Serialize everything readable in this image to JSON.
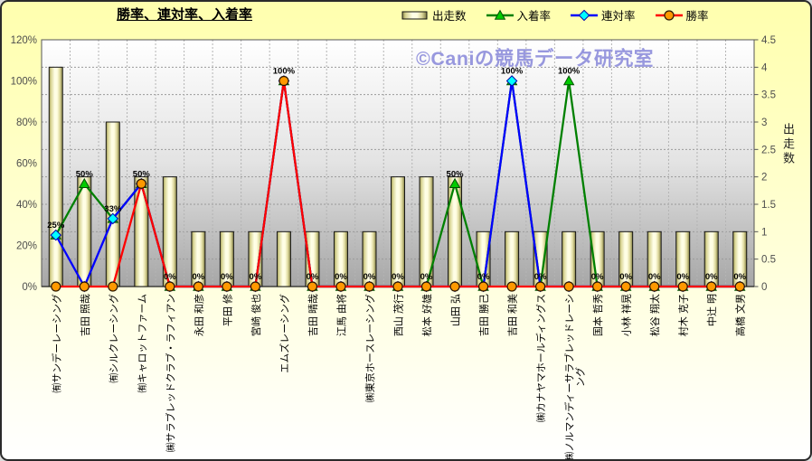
{
  "title": "勝率、連対率、入着率",
  "watermark": "©Caniの競馬データ研究室",
  "colors": {
    "place_line": "#008000",
    "place_marker": "#00CC00",
    "quinella_line": "#0000FF",
    "quinella_marker": "#00FFFF",
    "win_line": "#FF0000",
    "win_marker": "#FF9900",
    "bar_face": "#FFFFE8",
    "bar_edge": "#8F8B4D",
    "watermark": "#9090DC"
  },
  "legend": {
    "items": [
      {
        "label": "出走数",
        "swatch": "bar"
      },
      {
        "label": "入着率",
        "swatch": "triangle"
      },
      {
        "label": "連対率",
        "swatch": "diamond"
      },
      {
        "label": "勝率",
        "swatch": "circle"
      }
    ]
  },
  "chart_data": {
    "type": "combo-bar-line",
    "title": "勝率、連対率、入着率",
    "legend_position": "top",
    "grid": true,
    "categories": [
      "㈲サンデーレーシング",
      "吉田 照哉",
      "㈲シルクレーシング",
      "㈲キャロットファーム",
      "㈱サラブレッドクラブ・ラフィアン",
      "永田 和彦",
      "平田 修",
      "宮崎 俊也",
      "エムズレーシング",
      "吉田 晴哉",
      "江馬 由将",
      "㈱東京ホースレーシング",
      "西山 茂行",
      "松本 好雄",
      "山田 弘",
      "吉田 勝己",
      "吉田 和美",
      "㈱カナヤマホールディングス",
      "㈱ノルマンディーサラブレッドレーシング",
      "国本 哲秀",
      "小林 祥晃",
      "松谷 翔太",
      "村木 克子",
      "中辻 明",
      "高橋 文男"
    ],
    "series": [
      {
        "name": "出走数",
        "type": "bar",
        "axis": "right",
        "values": [
          4,
          2,
          3,
          2,
          2,
          1,
          1,
          1,
          1,
          1,
          1,
          1,
          2,
          2,
          2,
          1,
          1,
          1,
          1,
          1,
          1,
          1,
          1,
          1,
          1
        ]
      },
      {
        "name": "入着率",
        "type": "line",
        "marker": "triangle",
        "axis": "left",
        "values": [
          25,
          50,
          33,
          50,
          0,
          0,
          0,
          0,
          100,
          0,
          0,
          0,
          0,
          0,
          50,
          0,
          100,
          0,
          100,
          0,
          0,
          0,
          0,
          0,
          0
        ],
        "labels": [
          "25%",
          "50%",
          "33%",
          "50%",
          "0%",
          "0%",
          "0%",
          "0%",
          "100%",
          "0%",
          "0%",
          "0%",
          "0%",
          "0%",
          "50%",
          "0%",
          "100%",
          "0%",
          "100%",
          "0%",
          "0%",
          "0%",
          "0%",
          "0%",
          "0%"
        ]
      },
      {
        "name": "連対率",
        "type": "line",
        "marker": "diamond",
        "axis": "left",
        "values": [
          25,
          0,
          33,
          50,
          0,
          0,
          0,
          0,
          100,
          0,
          0,
          0,
          0,
          0,
          0,
          0,
          100,
          0,
          0,
          0,
          0,
          0,
          0,
          0,
          0
        ]
      },
      {
        "name": "勝率",
        "type": "line",
        "marker": "circle",
        "axis": "left",
        "values": [
          0,
          0,
          0,
          50,
          0,
          0,
          0,
          0,
          100,
          0,
          0,
          0,
          0,
          0,
          0,
          0,
          0,
          0,
          0,
          0,
          0,
          0,
          0,
          0,
          0
        ]
      }
    ],
    "left_axis": {
      "min": 0,
      "max": 120,
      "ticks": [
        "0%",
        "20%",
        "40%",
        "60%",
        "80%",
        "100%",
        "120%"
      ]
    },
    "right_axis": {
      "title": "出走数",
      "min": 0,
      "max": 4.5,
      "ticks": [
        "0",
        "0.5",
        "1",
        "1.5",
        "2",
        "2.5",
        "3",
        "3.5",
        "4",
        "4.5"
      ]
    }
  }
}
